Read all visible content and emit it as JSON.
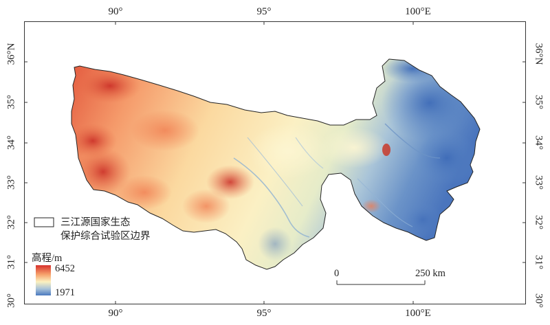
{
  "longitude_labels": [
    {
      "text": "90°"
    },
    {
      "text": "95°"
    },
    {
      "text": "100°E"
    }
  ],
  "latitude_labels": [
    {
      "text": "36°N"
    },
    {
      "text": "35°"
    },
    {
      "text": "34°"
    },
    {
      "text": "33°"
    },
    {
      "text": "32°"
    },
    {
      "text": "31°"
    },
    {
      "text": "30°"
    }
  ],
  "boundary_legend": {
    "line1": "三江源国家生态",
    "line2": "保护综合试验区边界"
  },
  "elevation_legend": {
    "title": "高程/m",
    "max_value": "6452",
    "min_value": "1971",
    "colors": [
      "#d7302c",
      "#f6a06a",
      "#fbf1c0",
      "#a9c3d9",
      "#4a79bf"
    ]
  },
  "scale_bar": {
    "start_label": "0",
    "end_label": "250 km"
  }
}
